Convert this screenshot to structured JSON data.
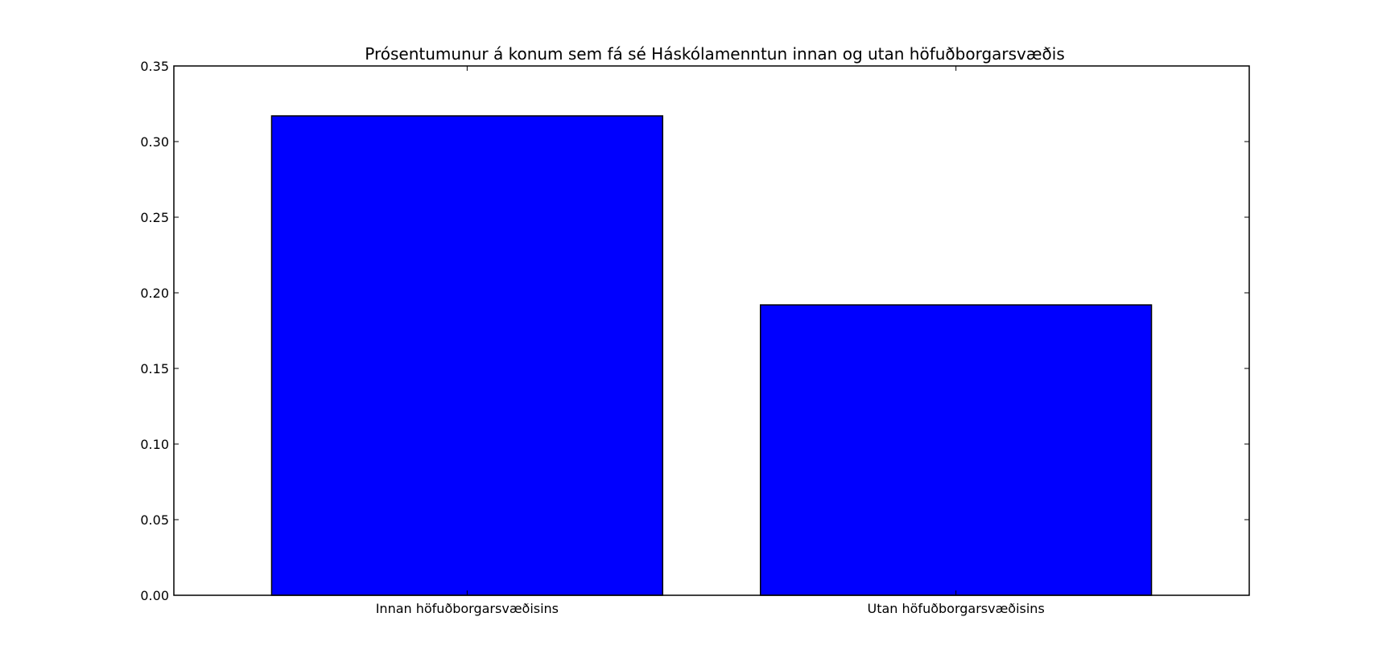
{
  "chart_data": {
    "type": "bar",
    "title": "Prósentumunur á konum sem fá sé Háskólamenntun innan og utan höfuðborgarsvæðis",
    "xlabel": "",
    "ylabel": "",
    "categories": [
      "Innan höfuðborgarsvæðisins",
      "Utan höfuðborgarsvæðisins"
    ],
    "values": [
      0.317,
      0.192
    ],
    "ylim": [
      0,
      0.35
    ],
    "yticks": [
      "0.00",
      "0.05",
      "0.10",
      "0.15",
      "0.20",
      "0.25",
      "0.30",
      "0.35"
    ],
    "grid": false,
    "bar_color": "#0000ff",
    "edge_color": "#000000"
  }
}
